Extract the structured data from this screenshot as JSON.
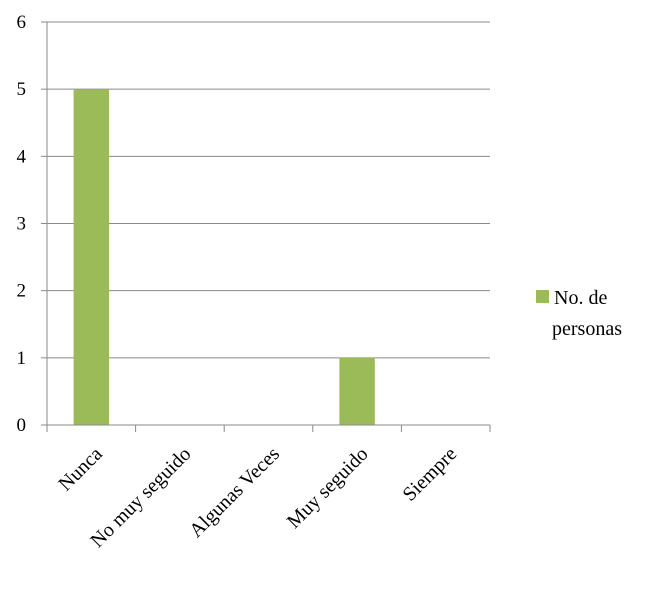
{
  "chart_data": {
    "type": "bar",
    "categories": [
      "Nunca",
      "No muy seguido",
      "Algunas Veces",
      "Muy seguido",
      "Siempre"
    ],
    "series": [
      {
        "name": "No. de personas",
        "values": [
          5,
          0,
          0,
          1,
          0
        ]
      }
    ],
    "ylim": [
      0,
      6
    ],
    "yticks": [
      "0",
      "1",
      "2",
      "3",
      "4",
      "5",
      "6"
    ],
    "grid": true,
    "legend": {
      "position": "right",
      "lines": [
        "No. de",
        "personas"
      ]
    },
    "colors": {
      "bar": "#9bbb59",
      "grid": "#8a8a8a",
      "axis": "#8a8a8a"
    }
  }
}
